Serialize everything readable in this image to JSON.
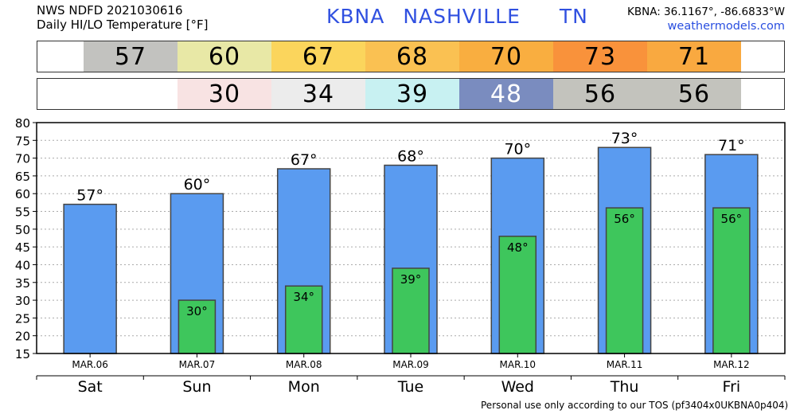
{
  "header": {
    "line1": "NWS NDFD 2021030616",
    "line2": "Daily HI/LO Temperature [°F]",
    "station": "KBNA",
    "city": "NASHVILLE",
    "state": "TN",
    "coords": "KBNA: 36.1167°, -86.6833°W",
    "site": "weathermodels.com"
  },
  "hi_band": [
    {
      "value": "57",
      "color": "#c2c2bf"
    },
    {
      "value": "60",
      "color": "#e8e8a6"
    },
    {
      "value": "67",
      "color": "#fbd55c"
    },
    {
      "value": "68",
      "color": "#fac152"
    },
    {
      "value": "70",
      "color": "#f9ae40"
    },
    {
      "value": "73",
      "color": "#f9923b"
    },
    {
      "value": "71",
      "color": "#f9a940"
    }
  ],
  "lo_band": [
    {
      "value": "",
      "color": "#ffffff",
      "text_color": "#000000"
    },
    {
      "value": "30",
      "color": "#f8e3e3",
      "text_color": "#000000"
    },
    {
      "value": "34",
      "color": "#ececec",
      "text_color": "#000000"
    },
    {
      "value": "39",
      "color": "#c8f1f2",
      "text_color": "#000000"
    },
    {
      "value": "48",
      "color": "#7a8cbf",
      "text_color": "#ffffff"
    },
    {
      "value": "56",
      "color": "#c3c3bd",
      "text_color": "#000000"
    },
    {
      "value": "56",
      "color": "#c3c3bd",
      "text_color": "#000000"
    }
  ],
  "chart_data": {
    "type": "bar",
    "categories": [
      "MAR.06",
      "MAR.07",
      "MAR.08",
      "MAR.09",
      "MAR.10",
      "MAR.11",
      "MAR.12"
    ],
    "days": [
      "Sat",
      "Sun",
      "Mon",
      "Tue",
      "Wed",
      "Thu",
      "Fri"
    ],
    "series": [
      {
        "values": [
          57,
          60,
          67,
          68,
          70,
          73,
          71
        ],
        "color": "#5a9bf0",
        "labels": [
          "57°",
          "60°",
          "67°",
          "68°",
          "70°",
          "73°",
          "71°"
        ]
      },
      {
        "values": [
          null,
          30,
          34,
          39,
          48,
          56,
          56
        ],
        "color": "#3ec65c",
        "labels": [
          "",
          "30°",
          "34°",
          "39°",
          "48°",
          "56°",
          "56°"
        ]
      }
    ],
    "ylim": [
      15,
      80
    ],
    "yticks": [
      "15",
      "20",
      "25",
      "30",
      "35",
      "40",
      "45",
      "50",
      "55",
      "60",
      "65",
      "70",
      "75",
      "80"
    ],
    "grid": true
  },
  "footer": "Personal use only according to our TOS (pf3404x0UKBNA0p404)"
}
